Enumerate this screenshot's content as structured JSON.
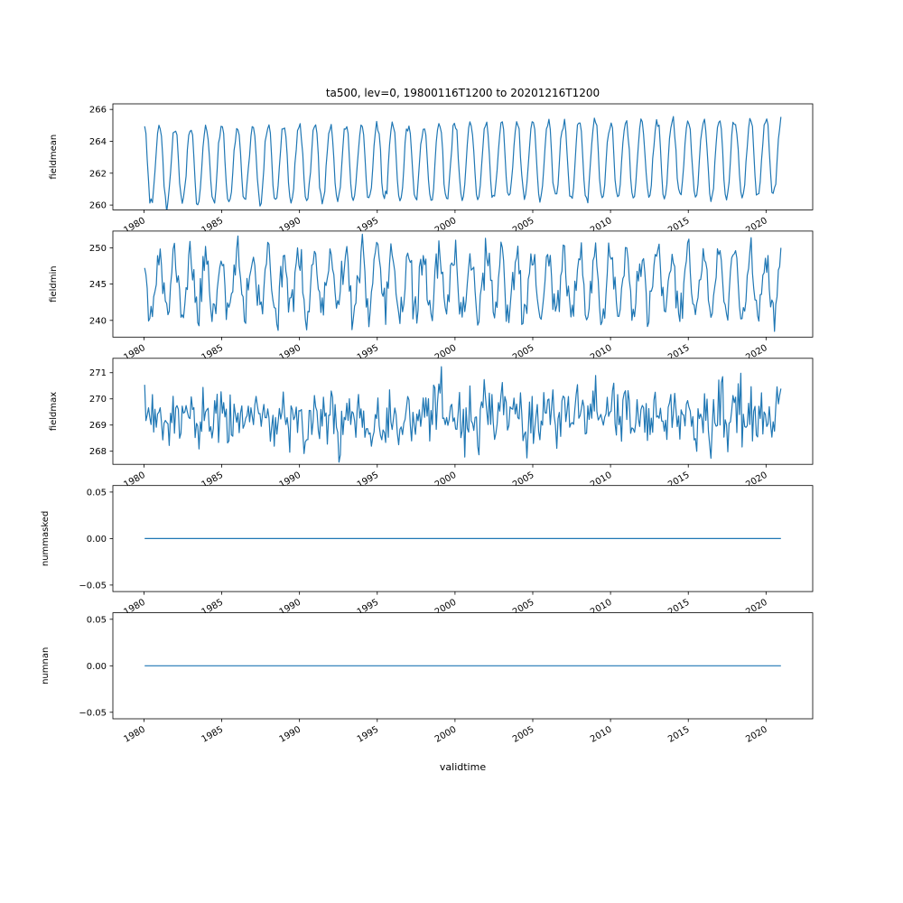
{
  "title": "ta500, lev=0, 19800116T1200 to 20201216T1200",
  "line_color": "#1f77b4",
  "axis_color": "#000000",
  "background_color": "#ffffff",
  "x": {
    "label": "validtime",
    "lim": [
      1978,
      2023
    ],
    "ticks": [
      1980,
      1985,
      1990,
      1995,
      2000,
      2005,
      2010,
      2015,
      2020
    ],
    "tick_labels": [
      "1980",
      "1985",
      "1990",
      "1995",
      "2000",
      "2005",
      "2010",
      "2015",
      "2020"
    ],
    "tick_rotation": 30,
    "start": 1980.042,
    "end": 2020.958,
    "points_per_year": 12
  },
  "chart_data": [
    {
      "type": "line",
      "ylabel": "fieldmean",
      "ylim": [
        259.7,
        266.35
      ],
      "yticks": [
        260,
        262,
        264,
        266
      ],
      "ytick_labels": [
        "260",
        "262",
        "264",
        "266"
      ],
      "ylabel_x": 62,
      "series": [
        {
          "name": "fieldmean",
          "model": "seasonal",
          "monthly": [
            264.8,
            264.3,
            263.0,
            261.4,
            260.4,
            260.1,
            260.3,
            261.0,
            262.2,
            263.5,
            264.4,
            264.8
          ],
          "noise": 0.18,
          "trend_per_year": 0.012,
          "seed": 3
        }
      ]
    },
    {
      "type": "line",
      "ylabel": "fieldmin",
      "ylim": [
        237.7,
        252.3
      ],
      "yticks": [
        240,
        245,
        250
      ],
      "ytick_labels": [
        "240",
        "245",
        "250"
      ],
      "ylabel_x": 62,
      "series": [
        {
          "name": "fieldmin",
          "model": "seasonal",
          "monthly": [
            248.8,
            247.5,
            245.2,
            243.0,
            241.6,
            241.0,
            241.4,
            242.6,
            244.4,
            246.3,
            247.9,
            248.9
          ],
          "noise": 1.4,
          "trend_per_year": 0,
          "seed": 11
        }
      ]
    },
    {
      "type": "line",
      "ylabel": "fieldmax",
      "ylim": [
        267.5,
        271.55
      ],
      "yticks": [
        268,
        269,
        270,
        271
      ],
      "ytick_labels": [
        "268",
        "269",
        "270",
        "271"
      ],
      "ylabel_x": 62,
      "series": [
        {
          "name": "fieldmax",
          "model": "seasonal",
          "monthly": [
            269.45,
            269.35,
            269.2,
            269.05,
            268.95,
            268.9,
            268.95,
            269.05,
            269.2,
            269.3,
            269.4,
            269.45
          ],
          "noise": 0.55,
          "trend_per_year": 0.004,
          "seed": 23
        }
      ]
    },
    {
      "type": "line",
      "ylabel": "nummasked",
      "ylim": [
        -0.057,
        0.057
      ],
      "yticks": [
        -0.05,
        0.0,
        0.05
      ],
      "ytick_labels": [
        "−0.05",
        "0.00",
        "0.05"
      ],
      "ylabel_x": 53,
      "series": [
        {
          "name": "nummasked",
          "model": "constant",
          "value": 0
        }
      ]
    },
    {
      "type": "line",
      "ylabel": "numnan",
      "ylim": [
        -0.057,
        0.057
      ],
      "yticks": [
        -0.05,
        0.0,
        0.05
      ],
      "ytick_labels": [
        "−0.05",
        "0.00",
        "0.05"
      ],
      "ylabel_x": 53,
      "series": [
        {
          "name": "numnan",
          "model": "constant",
          "value": 0
        }
      ]
    }
  ]
}
